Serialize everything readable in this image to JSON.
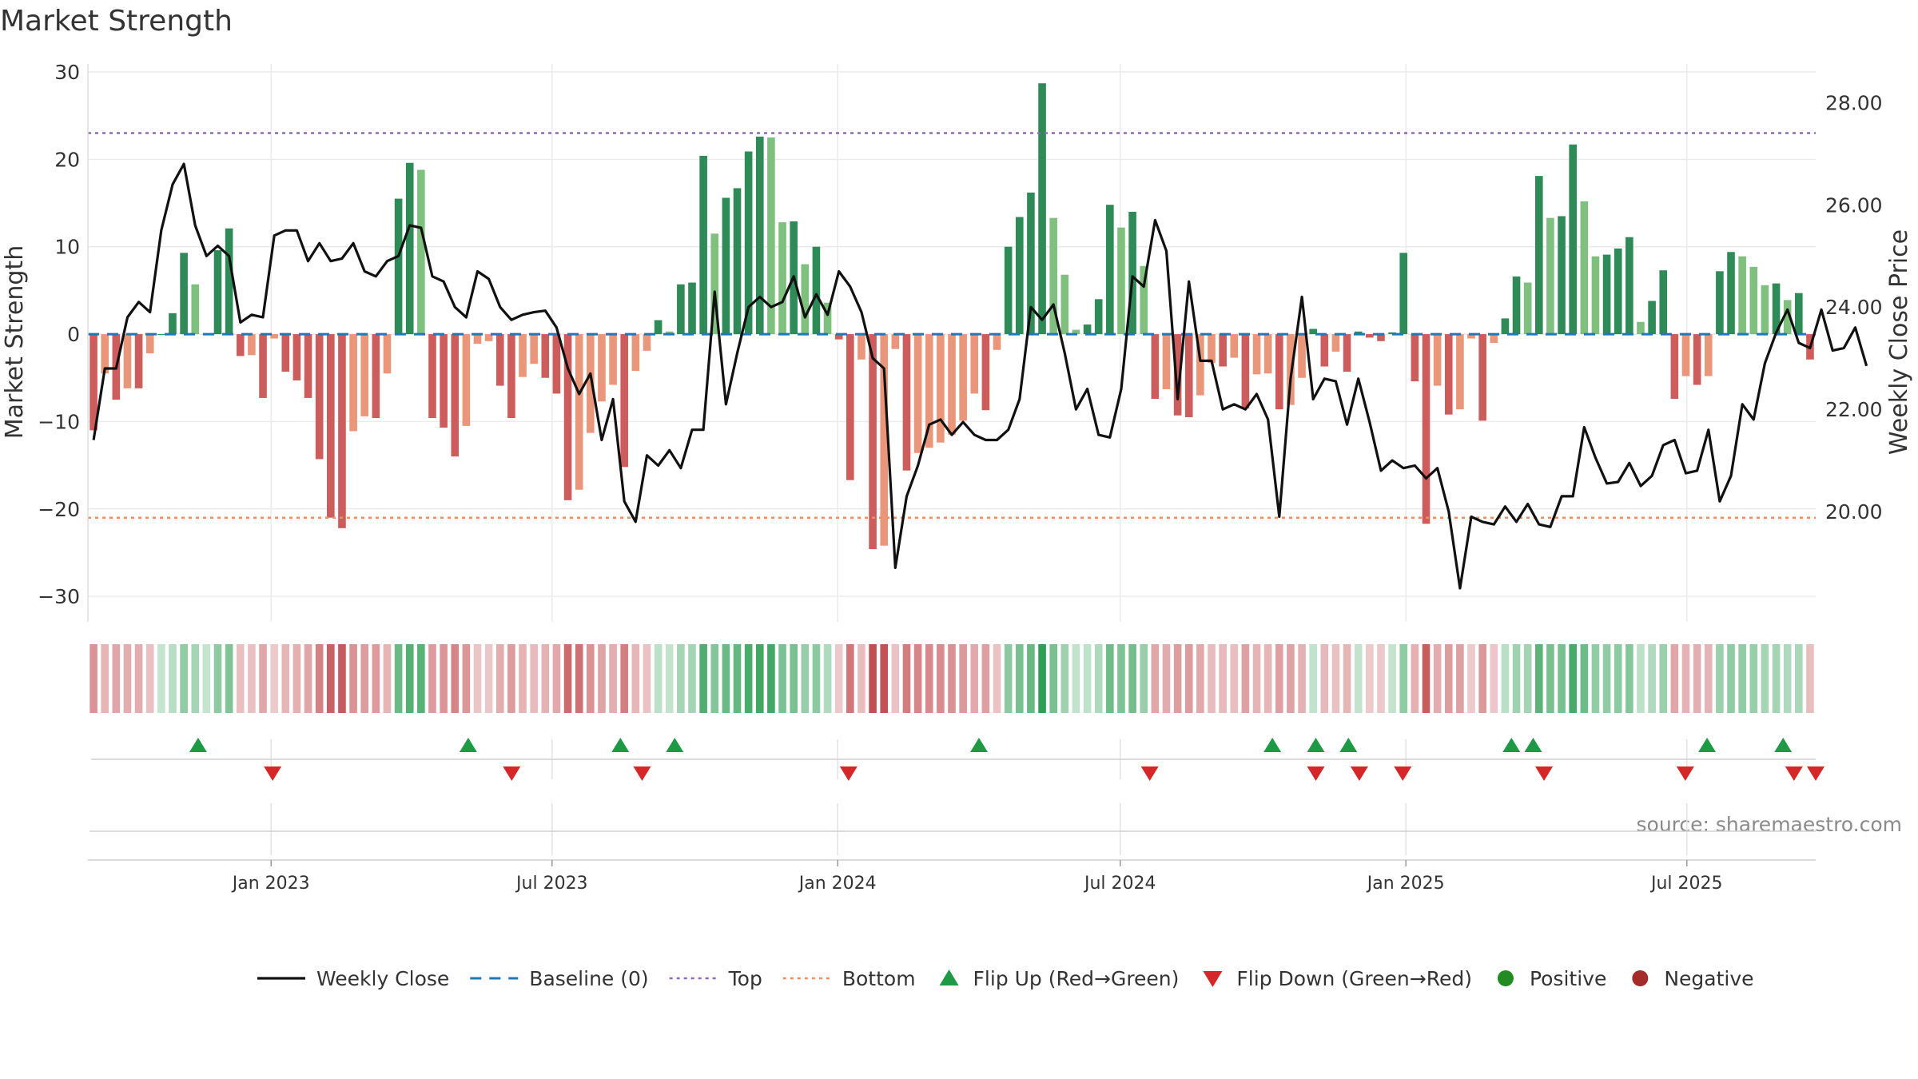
{
  "chart_data": {
    "type": "bar",
    "title": "Market Strength",
    "ylabel": "Market Strength",
    "y2label": "Weekly Close Price",
    "source": "source: sharemaestro.com",
    "ylim": [
      -32,
      30
    ],
    "y2lim": [
      18.0,
      28.6
    ],
    "y_ticks": [
      30,
      20,
      10,
      0,
      -10,
      -20,
      -30
    ],
    "y_tick_labels": [
      "30",
      "20",
      "10",
      "0",
      "−10",
      "−20",
      "−30"
    ],
    "y2_ticks": [
      28,
      26,
      24,
      22,
      20
    ],
    "y2_tick_labels": [
      "28.00",
      "26.00",
      "24.00",
      "22.00",
      "20.00"
    ],
    "x_start": "2022-09-05",
    "x_end": "2025-09-22",
    "x_ticks": [
      {
        "date": "2023-01-01",
        "label": "Jan 2023"
      },
      {
        "date": "2023-07-01",
        "label": "Jul 2023"
      },
      {
        "date": "2024-01-01",
        "label": "Jan 2024"
      },
      {
        "date": "2024-07-01",
        "label": "Jul 2024"
      },
      {
        "date": "2025-01-01",
        "label": "Jan 2025"
      },
      {
        "date": "2025-07-01",
        "label": "Jul 2025"
      }
    ],
    "top_line": 23,
    "bottom_line": -21,
    "grid": true,
    "legend_position": "bottom",
    "legend": [
      {
        "label": "Weekly Close",
        "kind": "line",
        "color": "#111111"
      },
      {
        "label": "Baseline (0)",
        "kind": "dash",
        "color": "#1f77b4"
      },
      {
        "label": "Top",
        "kind": "dot",
        "color": "#9467bd"
      },
      {
        "label": "Bottom",
        "kind": "dot",
        "color": "#f28e5a"
      },
      {
        "label": "Flip Up (Red→Green)",
        "kind": "tri-up",
        "color": "#1e9a47"
      },
      {
        "label": "Flip Down (Green→Red)",
        "kind": "tri-down",
        "color": "#d62728"
      },
      {
        "label": "Positive",
        "kind": "circle",
        "color": "#228b22"
      },
      {
        "label": "Negative",
        "kind": "circle",
        "color": "#a52a2a"
      }
    ],
    "colors": {
      "pos_strong": "#2e8b57",
      "pos_weak": "#7fc07f",
      "neg_strong": "#cd5c5c",
      "neg_weak": "#e9967a",
      "baseline": "#1f77b4",
      "top": "#9467bd",
      "bottom": "#f28e5a",
      "close": "#111111",
      "flip_up": "#1e9a47",
      "flip_down": "#d62728",
      "grid": "#ebebeb"
    },
    "series": [
      {
        "name": "Market Strength",
        "values": [
          -11,
          -4.5,
          -7.5,
          -6.2,
          -6.2,
          -2.2,
          0,
          2.4,
          9.3,
          5.7,
          0,
          9.6,
          12.1,
          -2.5,
          -2.4,
          -7.3,
          -0.5,
          -4.3,
          -5.3,
          -7.3,
          -14.3,
          -21,
          -22.2,
          -11.1,
          -9.4,
          -9.6,
          -4.5,
          15.5,
          19.6,
          18.8,
          -9.6,
          -10.7,
          -14,
          -10.5,
          -1.1,
          -0.8,
          -5.9,
          -9.6,
          -4.9,
          -3.4,
          -5,
          -6.8,
          -19,
          -17.8,
          -11.3,
          -7.7,
          -5.8,
          -15.2,
          -4.2,
          -1.9,
          1.6,
          0.3,
          5.7,
          5.9,
          20.4,
          11.5,
          15.6,
          16.7,
          20.9,
          22.6,
          22.5,
          12.8,
          12.9,
          8,
          10,
          3.6,
          -0.6,
          -16.7,
          -2.9,
          -24.6,
          -24.2,
          -1.7,
          -15.6,
          -13.6,
          -13,
          -12.4,
          -11.5,
          -9.9,
          -6.8,
          -8.7,
          -1.8,
          10,
          13.4,
          16.2,
          28.7,
          13.3,
          6.8,
          0.5,
          1.1,
          4,
          14.8,
          12.2,
          14,
          7.8,
          -7.4,
          -6.3,
          -9.3,
          -9.5,
          -7,
          -3.3,
          -3.7,
          -2.7,
          -8.5,
          -4.6,
          -4.5,
          -8.6,
          -8.1,
          -5,
          0.6,
          -3.7,
          -2,
          -4.3,
          0.3,
          -0.4,
          -0.8,
          0.2,
          9.3,
          -5.4,
          -21.7,
          -5.9,
          -9.2,
          -8.6,
          -0.5,
          -9.9,
          -1,
          1.8,
          6.6,
          5.9,
          18.1,
          13.3,
          13.5,
          21.7,
          15.2,
          8.9,
          9.1,
          9.8,
          11.1,
          1.4,
          3.8,
          7.3,
          -7.4,
          -4.8,
          -5.8,
          -4.8,
          7.2,
          9.4,
          8.9,
          7.7,
          5.6,
          5.8,
          3.9,
          4.7,
          -2.9
        ]
      },
      {
        "name": "Weekly Close",
        "axis": "right",
        "values": [
          21.4,
          22.8,
          22.8,
          23.8,
          24.1,
          23.9,
          25.5,
          26.4,
          26.8,
          25.6,
          25.0,
          25.2,
          25.0,
          23.7,
          23.85,
          23.8,
          25.4,
          25.5,
          25.5,
          24.9,
          25.25,
          24.9,
          24.95,
          25.25,
          24.7,
          24.6,
          24.9,
          25.0,
          25.6,
          25.55,
          24.6,
          24.5,
          24.0,
          23.8,
          24.7,
          24.55,
          24.0,
          23.75,
          23.85,
          23.9,
          23.93,
          23.6,
          22.8,
          22.3,
          22.7,
          21.4,
          22.2,
          20.2,
          19.8,
          21.1,
          20.9,
          21.2,
          20.85,
          21.6,
          21.6,
          24.3,
          22.1,
          23.1,
          24.0,
          24.2,
          24.0,
          24.1,
          24.6,
          23.8,
          24.25,
          23.85,
          24.7,
          24.4,
          23.9,
          23.0,
          22.8,
          18.9,
          20.3,
          20.9,
          21.7,
          21.8,
          21.5,
          21.75,
          21.5,
          21.4,
          21.4,
          21.6,
          22.2,
          24.0,
          23.75,
          24.05,
          23.1,
          22.0,
          22.4,
          21.5,
          21.45,
          22.4,
          24.6,
          24.4,
          25.7,
          25.1,
          22.2,
          24.5,
          22.95,
          22.95,
          22.0,
          22.1,
          22.0,
          22.3,
          21.8,
          19.9,
          22.6,
          24.2,
          22.2,
          22.6,
          22.55,
          21.7,
          22.6,
          21.75,
          20.8,
          21.0,
          20.85,
          20.9,
          20.65,
          20.85,
          20.0,
          18.5,
          19.9,
          19.8,
          19.75,
          20.1,
          19.8,
          20.15,
          19.75,
          19.7,
          20.3,
          20.3,
          21.65,
          21.05,
          20.55,
          20.58,
          20.95,
          20.5,
          20.7,
          21.3,
          21.4,
          20.75,
          20.8,
          21.6,
          20.2,
          20.7,
          22.1,
          21.8,
          22.9,
          23.5,
          23.95,
          23.3,
          23.2,
          23.95,
          23.15,
          23.2,
          23.6,
          22.85
        ]
      }
    ],
    "strength_strip": {
      "name": "Strength Strip",
      "values": [
        -11,
        -4.5,
        -7.5,
        -6.2,
        -6.2,
        -2.2,
        0,
        2.4,
        9.3,
        5.7,
        0,
        9.6,
        12.1,
        -2.5,
        -2.4,
        -7.3,
        -0.5,
        -4.3,
        -5.3,
        -7.3,
        -14.3,
        -21,
        -22.2,
        -11.1,
        -9.4,
        -9.6,
        -4.5,
        15.5,
        19.6,
        18.8,
        -9.6,
        -10.7,
        -14,
        -10.5,
        -1.1,
        -0.8,
        -5.9,
        -9.6,
        -4.9,
        -3.4,
        -5,
        -6.8,
        -19,
        -17.8,
        -11.3,
        -7.7,
        -5.8,
        -15.2,
        -4.2,
        -1.9,
        1.6,
        0.3,
        5.7,
        5.9,
        20.4,
        11.5,
        15.6,
        16.7,
        20.9,
        22.6,
        22.5,
        12.8,
        12.9,
        8,
        10,
        3.6,
        -0.6,
        -16.7,
        -2.9,
        -24.6,
        -24.2,
        -1.7,
        -15.6,
        -13.6,
        -13,
        -12.4,
        -11.5,
        -9.9,
        -6.8,
        -8.7,
        -1.8,
        10,
        13.4,
        16.2,
        28.7,
        13.3,
        6.8,
        0.5,
        1.1,
        4,
        14.8,
        12.2,
        14,
        7.8,
        -7.4,
        -6.3,
        -9.3,
        -9.5,
        -7,
        -3.3,
        -3.7,
        -2.7,
        -8.5,
        -4.6,
        -4.5,
        -8.6,
        -8.1,
        -5,
        0.6,
        -3.7,
        -2,
        -4.3,
        0.3,
        -0.4,
        -0.8,
        0.2,
        9.3,
        -5.4,
        -21.7,
        -5.9,
        -9.2,
        -8.6,
        -0.5,
        -9.9,
        -1,
        1.8,
        6.6,
        5.9,
        18.1,
        13.3,
        13.5,
        21.7,
        15.2,
        8.9,
        9.1,
        9.8,
        11.1,
        1.4,
        3.8,
        7.3,
        -7.4,
        -4.8,
        -5.8,
        -4.8,
        7.2,
        9.4,
        8.9,
        7.7,
        5.6,
        5.8,
        3.9,
        4.7,
        -2.9
      ]
    },
    "flips": {
      "up": [
        "2022-11-15",
        "2023-05-08",
        "2023-08-14",
        "2023-09-18",
        "2024-04-01",
        "2024-10-07",
        "2024-11-04",
        "2024-11-25",
        "2025-03-10",
        "2025-03-24",
        "2025-07-14",
        "2025-09-01"
      ],
      "down": [
        "2023-01-02",
        "2023-06-05",
        "2023-08-28",
        "2024-01-08",
        "2024-07-20",
        "2024-11-04",
        "2024-12-02",
        "2024-12-30",
        "2025-03-31",
        "2025-06-30",
        "2025-09-08",
        "2025-09-22"
      ]
    }
  }
}
